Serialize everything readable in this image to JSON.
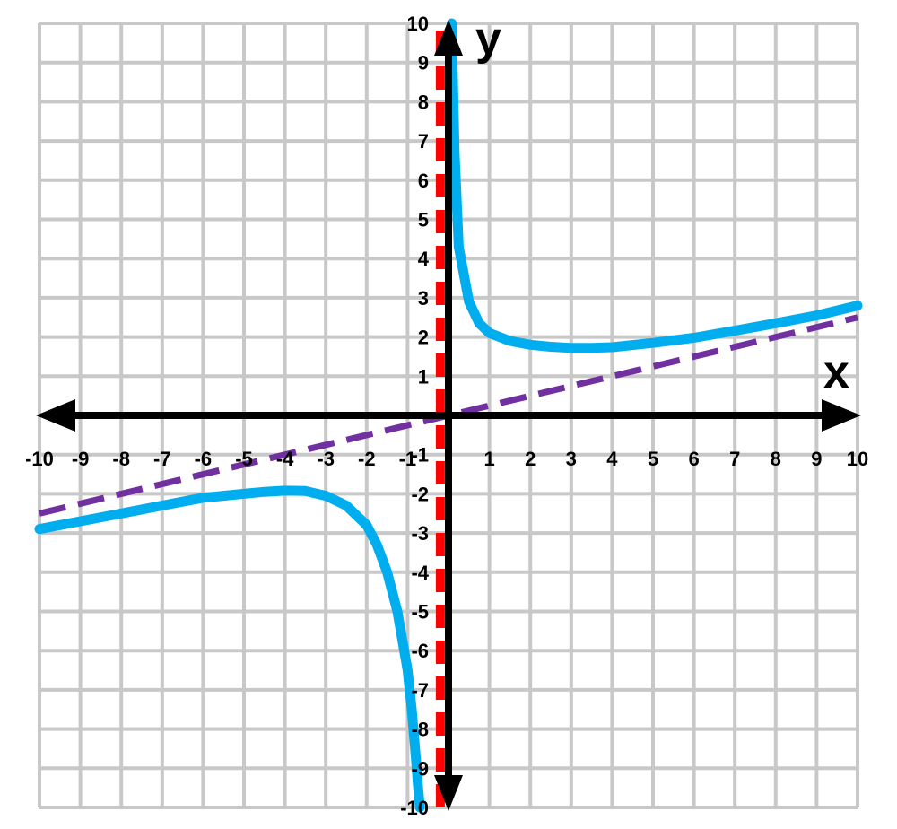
{
  "chart_data": {
    "type": "line",
    "xlabel": "x",
    "ylabel": "y",
    "xlim": [
      -10,
      10
    ],
    "ylim": [
      -10,
      10
    ],
    "x_ticks": [
      -10,
      -9,
      -8,
      -7,
      -6,
      -5,
      -4,
      -3,
      -2,
      -1,
      1,
      2,
      3,
      4,
      5,
      6,
      7,
      8,
      9,
      10
    ],
    "y_ticks": [
      -10,
      -9,
      -8,
      -7,
      -6,
      -5,
      -4,
      -3,
      -2,
      -1,
      1,
      2,
      3,
      4,
      5,
      6,
      7,
      8,
      9,
      10
    ],
    "grid": true,
    "series": [
      {
        "kind": "curve-branch-right",
        "color": "#00aeef",
        "x": [
          0.08,
          0.15,
          0.25,
          0.5,
          0.75,
          1,
          1.5,
          2,
          2.5,
          3,
          3.5,
          4,
          5,
          6,
          7,
          8,
          9,
          10
        ],
        "y": [
          10,
          6.7,
          4.3,
          2.9,
          2.35,
          2.1,
          1.9,
          1.8,
          1.75,
          1.72,
          1.72,
          1.74,
          1.85,
          1.98,
          2.16,
          2.35,
          2.55,
          2.8
        ]
      },
      {
        "kind": "curve-branch-left",
        "color": "#00aeef",
        "x": [
          -10,
          -9,
          -8,
          -7,
          -6,
          -5,
          -4.5,
          -4,
          -3.5,
          -3,
          -2.5,
          -2,
          -1.75,
          -1.5,
          -1.25,
          -1,
          -0.9,
          -0.8,
          -0.75,
          -0.7
        ],
        "y": [
          -2.9,
          -2.7,
          -2.5,
          -2.3,
          -2.1,
          -2.0,
          -1.95,
          -1.92,
          -1.93,
          -2.05,
          -2.3,
          -2.8,
          -3.3,
          -4.0,
          -5.0,
          -6.5,
          -7.5,
          -8.7,
          -9.4,
          -10
        ]
      },
      {
        "kind": "slant-asymptote",
        "color": "#7030a0",
        "style": "dashed",
        "x": [
          -10,
          10
        ],
        "y": [
          -2.5,
          2.5
        ]
      },
      {
        "kind": "vertical-asymptote",
        "color": "#ff0000",
        "style": "dashed",
        "x": [
          -0.2,
          -0.2
        ],
        "y": [
          -10,
          10
        ]
      }
    ]
  }
}
